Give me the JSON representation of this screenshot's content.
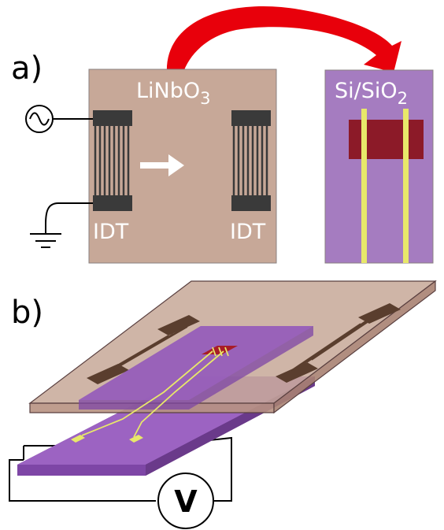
{
  "panel_a": {
    "label": "a)",
    "substrate_label": "LiNbO",
    "substrate_subscript": "3",
    "left_transducer_label": "IDT",
    "right_transducer_label": "IDT",
    "sample_label": "Si/SiO",
    "sample_subscript": "2"
  },
  "panel_b": {
    "label": "b)",
    "voltmeter_label": "V"
  },
  "colors": {
    "linbo3": "#c7a898",
    "sample": "#a57cc0",
    "flake": "#8c1a28",
    "electrode": "#e8e86a",
    "transfer_arrow": "#e8000b",
    "idt": "#3a3a3a",
    "chip_dark": "#7e46a6",
    "chip_light": "#9c63c2"
  }
}
